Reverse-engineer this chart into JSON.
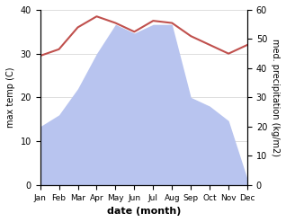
{
  "months": [
    "Jan",
    "Feb",
    "Mar",
    "Apr",
    "May",
    "Jun",
    "Jul",
    "Aug",
    "Sep",
    "Oct",
    "Nov",
    "Dec"
  ],
  "temperature": [
    29.5,
    31.0,
    36.0,
    38.5,
    37.0,
    35.0,
    37.5,
    37.0,
    34.0,
    32.0,
    30.0,
    32.0
  ],
  "precipitation": [
    20,
    24,
    33,
    45,
    55,
    52,
    55,
    55,
    30,
    27,
    22,
    2
  ],
  "temp_color": "#c0504d",
  "precip_fill_color": "#b8c4ef",
  "left_ylabel": "max temp (C)",
  "right_ylabel": "med. precipitation (kg/m2)",
  "xlabel": "date (month)",
  "left_ylim": [
    0,
    40
  ],
  "right_ylim": [
    0,
    60
  ],
  "left_yticks": [
    0,
    10,
    20,
    30,
    40
  ],
  "right_yticks": [
    0,
    10,
    20,
    30,
    40,
    50,
    60
  ],
  "background_color": "#ffffff",
  "grid_color": "#d0d0d0"
}
